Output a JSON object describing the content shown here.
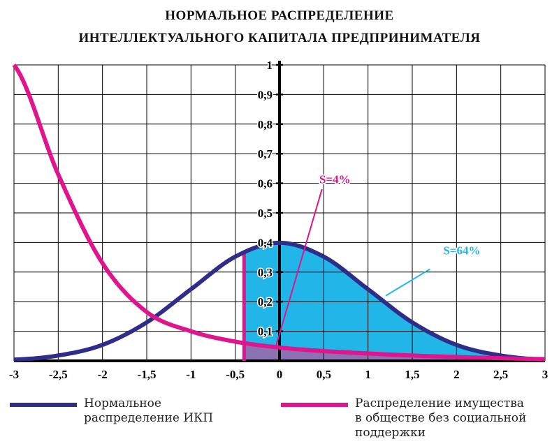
{
  "title_line1": "НОРМАЛЬНОЕ РАСПРЕДЕЛЕНИЕ",
  "title_line2": "ИНТЕЛЛЕКТУАЛЬНОГО КАПИТАЛА ПРЕДПРИНИМАТЕЛЯ",
  "colors": {
    "normal": "#2e2e8a",
    "property": "#e0148c",
    "fill_right": "#22b5e8",
    "fill_left": "#a066a8",
    "grid": "#000000"
  },
  "chart_data": {
    "type": "line",
    "title": "НОРМАЛЬНОЕ РАСПРЕДЕЛЕНИЕ ИНТЕЛЛЕКТУАЛЬНОГО КАПИТАЛА ПРЕДПРИНИМАТЕЛЯ",
    "xlim": [
      -3,
      3
    ],
    "ylim": [
      0,
      1
    ],
    "grid": true,
    "x_ticks": [
      "-3",
      "-2,5",
      "-2",
      "-1,5",
      "-1",
      "-0,5",
      "0",
      "0,5",
      "1",
      "1,5",
      "2",
      "2,5",
      "3"
    ],
    "y_ticks": [
      "0,1",
      "0,2",
      "0,3",
      "0,4",
      "0,5",
      "0,6",
      "0,7",
      "0,8",
      "0,9",
      "1"
    ],
    "x": [
      -3,
      -2.5,
      -2,
      -1.5,
      -1,
      -0.5,
      0,
      0.5,
      1,
      1.5,
      2,
      2.5,
      3
    ],
    "series": [
      {
        "name": "Нормальное распределение ИКП",
        "values": [
          0.004,
          0.018,
          0.054,
          0.13,
          0.242,
          0.352,
          0.399,
          0.352,
          0.242,
          0.13,
          0.054,
          0.018,
          0.004
        ]
      },
      {
        "name": "Распределение имущества в обществе без социальной поддержки",
        "values": [
          1.0,
          0.63,
          0.33,
          0.165,
          0.1,
          0.065,
          0.045,
          0.033,
          0.025,
          0.018,
          0.013,
          0.009,
          0.006
        ]
      }
    ],
    "shaded_from_x": -0.4,
    "annotations": [
      {
        "text": "S=4%",
        "x": 0.45,
        "y": 0.6
      },
      {
        "text": "S=64%",
        "x": 1.85,
        "y": 0.36
      }
    ]
  },
  "legend": {
    "normal_label_line1": "Нормальное",
    "normal_label_line2": "распределение ИКП",
    "property_label_line1": "Распределение имущества",
    "property_label_line2": "в обществе без социальной",
    "property_label_line3": "поддержки"
  }
}
